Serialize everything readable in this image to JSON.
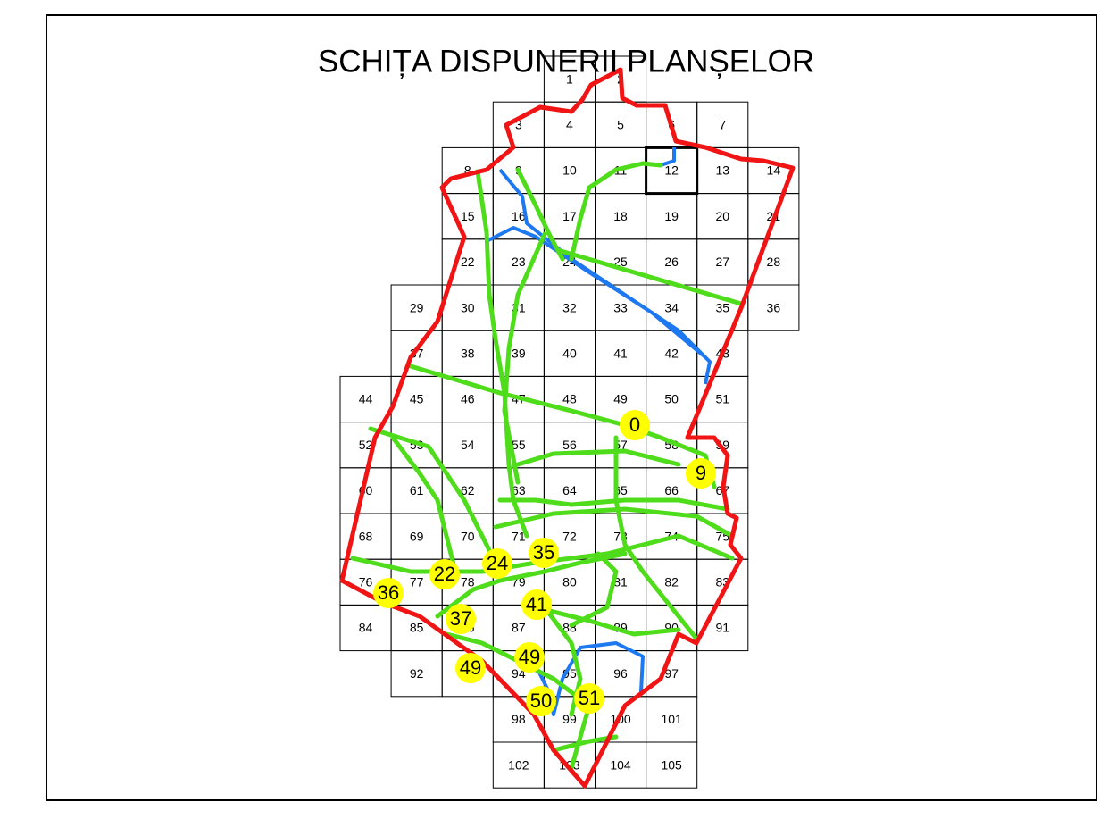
{
  "title": "SCHIȚA DISPUNERII PLANȘELOR",
  "cells": [
    "1",
    "2",
    "3",
    "4",
    "5",
    "6",
    "7",
    "8",
    "9",
    "10",
    "11",
    "12",
    "13",
    "14",
    "15",
    "16",
    "17",
    "18",
    "19",
    "20",
    "21",
    "22",
    "23",
    "24",
    "25",
    "26",
    "27",
    "28",
    "29",
    "30",
    "31",
    "32",
    "33",
    "34",
    "35",
    "36",
    "37",
    "38",
    "39",
    "40",
    "41",
    "42",
    "43",
    "44",
    "45",
    "46",
    "47",
    "48",
    "49",
    "50",
    "51",
    "52",
    "53",
    "54",
    "55",
    "56",
    "57",
    "58",
    "59",
    "60",
    "61",
    "62",
    "63",
    "64",
    "65",
    "66",
    "67",
    "68",
    "69",
    "70",
    "71",
    "72",
    "73",
    "74",
    "75",
    "76",
    "77",
    "78",
    "79",
    "80",
    "81",
    "82",
    "83",
    "84",
    "85",
    "86",
    "87",
    "88",
    "89",
    "90",
    "91",
    "92",
    "93",
    "94",
    "95",
    "96",
    "97",
    "98",
    "99",
    "100",
    "101",
    "102",
    "103",
    "104",
    "105"
  ],
  "markers": [
    "0",
    "9",
    "35",
    "24",
    "22",
    "36",
    "41",
    "37",
    "49",
    "49",
    "50",
    "51"
  ]
}
